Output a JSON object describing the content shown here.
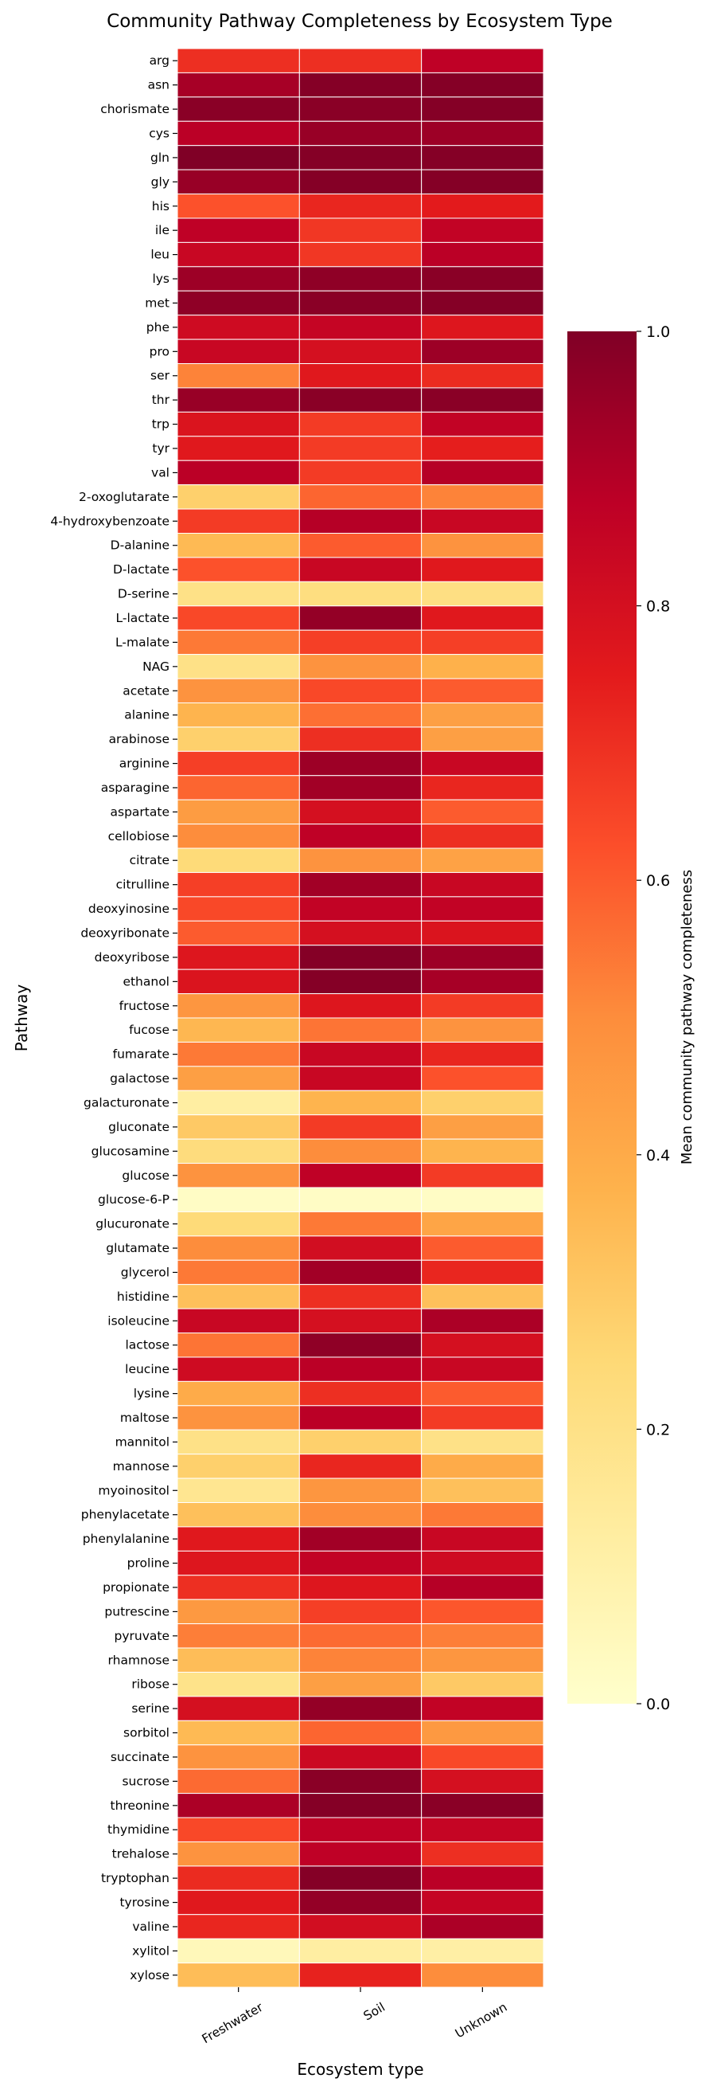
{
  "chart_data": {
    "type": "heatmap",
    "title": "Community Pathway Completeness by Ecosystem Type",
    "xlabel": "Ecosystem type",
    "ylabel": "Pathway",
    "colorbar": {
      "label": "Mean community pathway completeness",
      "colormap": "YlOrRd",
      "range": [
        0,
        1
      ],
      "ticks": [
        "0.0",
        "0.2",
        "0.4",
        "0.6",
        "0.8",
        "1.0"
      ]
    },
    "columns": [
      "Freshwater",
      "Soil",
      "Unknown"
    ],
    "rows": [
      "arg",
      "asn",
      "chorismate",
      "cys",
      "gln",
      "gly",
      "his",
      "ile",
      "leu",
      "lys",
      "met",
      "phe",
      "pro",
      "ser",
      "thr",
      "trp",
      "tyr",
      "val",
      "2-oxoglutarate",
      "4-hydroxybenzoate",
      "D-alanine",
      "D-lactate",
      "D-serine",
      "L-lactate",
      "L-malate",
      "NAG",
      "acetate",
      "alanine",
      "arabinose",
      "arginine",
      "asparagine",
      "aspartate",
      "cellobiose",
      "citrate",
      "citrulline",
      "deoxyinosine",
      "deoxyribonate",
      "deoxyribose",
      "ethanol",
      "fructose",
      "fucose",
      "fumarate",
      "galactose",
      "galacturonate",
      "gluconate",
      "glucosamine",
      "glucose",
      "glucose-6-P",
      "glucuronate",
      "glutamate",
      "glycerol",
      "histidine",
      "isoleucine",
      "lactose",
      "leucine",
      "lysine",
      "maltose",
      "mannitol",
      "mannose",
      "myoinositol",
      "phenylacetate",
      "phenylalanine",
      "proline",
      "propionate",
      "putrescine",
      "pyruvate",
      "rhamnose",
      "ribose",
      "serine",
      "sorbitol",
      "succinate",
      "sucrose",
      "threonine",
      "thymidine",
      "trehalose",
      "tryptophan",
      "tyrosine",
      "valine",
      "xylitol",
      "xylose"
    ],
    "values": [
      [
        0.7,
        0.7,
        0.87
      ],
      [
        0.92,
        0.99,
        0.99
      ],
      [
        0.98,
        0.98,
        0.99
      ],
      [
        0.88,
        0.95,
        0.94
      ],
      [
        1.0,
        0.99,
        0.99
      ],
      [
        0.95,
        0.99,
        0.99
      ],
      [
        0.62,
        0.72,
        0.75
      ],
      [
        0.87,
        0.68,
        0.86
      ],
      [
        0.84,
        0.68,
        0.88
      ],
      [
        0.94,
        0.97,
        0.98
      ],
      [
        0.97,
        0.98,
        0.99
      ],
      [
        0.82,
        0.85,
        0.77
      ],
      [
        0.84,
        0.8,
        0.94
      ],
      [
        0.52,
        0.76,
        0.71
      ],
      [
        0.95,
        0.98,
        0.98
      ],
      [
        0.78,
        0.67,
        0.86
      ],
      [
        0.76,
        0.67,
        0.74
      ],
      [
        0.88,
        0.67,
        0.89
      ],
      [
        0.28,
        0.58,
        0.52
      ],
      [
        0.67,
        0.89,
        0.84
      ],
      [
        0.35,
        0.6,
        0.48
      ],
      [
        0.62,
        0.84,
        0.76
      ],
      [
        0.2,
        0.22,
        0.21
      ],
      [
        0.64,
        0.96,
        0.76
      ],
      [
        0.54,
        0.66,
        0.66
      ],
      [
        0.2,
        0.48,
        0.38
      ],
      [
        0.48,
        0.64,
        0.6
      ],
      [
        0.37,
        0.56,
        0.44
      ],
      [
        0.28,
        0.7,
        0.44
      ],
      [
        0.66,
        0.94,
        0.84
      ],
      [
        0.58,
        0.93,
        0.72
      ],
      [
        0.45,
        0.8,
        0.6
      ],
      [
        0.5,
        0.87,
        0.7
      ],
      [
        0.24,
        0.48,
        0.43
      ],
      [
        0.66,
        0.93,
        0.84
      ],
      [
        0.64,
        0.86,
        0.86
      ],
      [
        0.6,
        0.8,
        0.78
      ],
      [
        0.77,
        0.99,
        0.94
      ],
      [
        0.78,
        0.99,
        0.92
      ],
      [
        0.47,
        0.77,
        0.67
      ],
      [
        0.36,
        0.55,
        0.48
      ],
      [
        0.54,
        0.84,
        0.72
      ],
      [
        0.44,
        0.84,
        0.62
      ],
      [
        0.12,
        0.37,
        0.28
      ],
      [
        0.3,
        0.67,
        0.44
      ],
      [
        0.23,
        0.5,
        0.37
      ],
      [
        0.48,
        0.87,
        0.67
      ],
      [
        0.02,
        0.02,
        0.02
      ],
      [
        0.24,
        0.54,
        0.42
      ],
      [
        0.5,
        0.81,
        0.6
      ],
      [
        0.54,
        0.93,
        0.72
      ],
      [
        0.33,
        0.7,
        0.33
      ],
      [
        0.84,
        0.8,
        0.91
      ],
      [
        0.55,
        0.97,
        0.8
      ],
      [
        0.82,
        0.88,
        0.84
      ],
      [
        0.4,
        0.7,
        0.6
      ],
      [
        0.48,
        0.88,
        0.67
      ],
      [
        0.2,
        0.28,
        0.2
      ],
      [
        0.28,
        0.72,
        0.4
      ],
      [
        0.17,
        0.47,
        0.33
      ],
      [
        0.33,
        0.5,
        0.54
      ],
      [
        0.76,
        0.93,
        0.84
      ],
      [
        0.77,
        0.86,
        0.82
      ],
      [
        0.7,
        0.77,
        0.89
      ],
      [
        0.46,
        0.66,
        0.61
      ],
      [
        0.53,
        0.57,
        0.53
      ],
      [
        0.34,
        0.52,
        0.47
      ],
      [
        0.19,
        0.44,
        0.3
      ],
      [
        0.8,
        0.96,
        0.86
      ],
      [
        0.35,
        0.58,
        0.46
      ],
      [
        0.48,
        0.83,
        0.64
      ],
      [
        0.57,
        0.98,
        0.8
      ],
      [
        0.91,
        0.99,
        0.98
      ],
      [
        0.64,
        0.87,
        0.85
      ],
      [
        0.48,
        0.87,
        0.7
      ],
      [
        0.71,
        0.99,
        0.88
      ],
      [
        0.76,
        0.96,
        0.85
      ],
      [
        0.72,
        0.81,
        0.91
      ],
      [
        0.05,
        0.12,
        0.11
      ],
      [
        0.34,
        0.73,
        0.5
      ]
    ]
  }
}
